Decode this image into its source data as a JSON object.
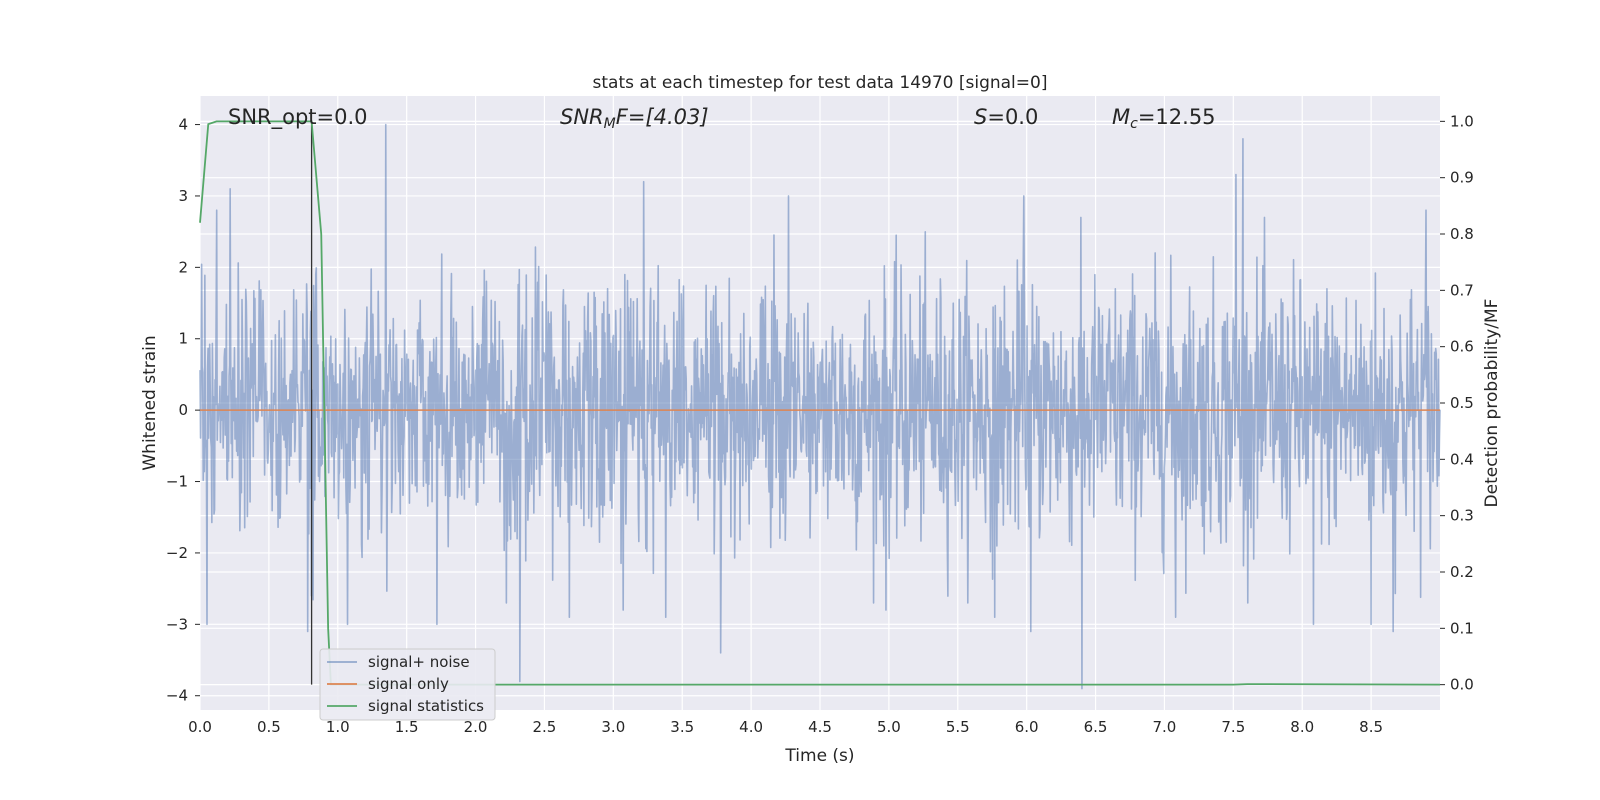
{
  "chart_data": {
    "type": "line",
    "title": "stats at each timestep for test data 14970 [signal=0]",
    "xlabel": "Time (s)",
    "ylabel": "Whitened strain",
    "y2label": "Detection probability/MF",
    "xlim": [
      0.0,
      9.0
    ],
    "ylim": [
      -4.2,
      4.4
    ],
    "y2lim": [
      -0.045,
      1.045
    ],
    "xticks": [
      "0.0",
      "0.5",
      "1.0",
      "1.5",
      "2.0",
      "2.5",
      "3.0",
      "3.5",
      "4.0",
      "4.5",
      "5.0",
      "5.5",
      "6.0",
      "6.5",
      "7.0",
      "7.5",
      "8.0",
      "8.5"
    ],
    "yticks": [
      "4",
      "3",
      "2",
      "1",
      "0",
      "−1",
      "−2",
      "−3",
      "−4"
    ],
    "y2ticks": [
      "1.0",
      "0.9",
      "0.8",
      "0.7",
      "0.6",
      "0.5",
      "0.4",
      "0.3",
      "0.2",
      "0.1",
      "0.0"
    ],
    "grid": true,
    "legend_position": "lower-left",
    "annotations": {
      "snr_opt": "SNR_opt=0.0",
      "snr_mf_base": "SNR",
      "snr_mf_sub": "M",
      "snr_mf_rest": "F=[4.03]",
      "s_italic": "S",
      "s_rest": "=0.0",
      "mc_italic": "M",
      "mc_sub": "c",
      "mc_rest": "=12.55"
    },
    "peak_marker_x": 0.81,
    "series": [
      {
        "name": "signal+ noise",
        "color": "#4c72b0",
        "sample_rate": 256,
        "duration": 9.0,
        "noise_sigma": 0.9,
        "spikes": [
          [
            0.05,
            -3.0
          ],
          [
            0.12,
            2.8
          ],
          [
            0.22,
            3.1
          ],
          [
            0.78,
            -3.1
          ],
          [
            0.81,
            -2.6
          ],
          [
            0.84,
            1.9
          ],
          [
            1.07,
            -3.0
          ],
          [
            1.35,
            4.0
          ],
          [
            1.72,
            -3.0
          ],
          [
            2.32,
            -3.8
          ],
          [
            2.68,
            -2.9
          ],
          [
            3.07,
            -2.8
          ],
          [
            3.22,
            3.2
          ],
          [
            3.38,
            -2.9
          ],
          [
            3.78,
            -3.4
          ],
          [
            4.27,
            3.0
          ],
          [
            4.98,
            -2.8
          ],
          [
            5.77,
            -2.9
          ],
          [
            5.98,
            3.0
          ],
          [
            6.03,
            -3.1
          ],
          [
            6.4,
            -3.9
          ],
          [
            7.08,
            -2.9
          ],
          [
            7.52,
            3.3
          ],
          [
            7.57,
            3.8
          ],
          [
            8.08,
            -3.0
          ],
          [
            8.5,
            -3.0
          ],
          [
            8.66,
            -3.1
          ],
          [
            8.9,
            2.8
          ]
        ]
      },
      {
        "name": "signal only",
        "color": "#dd8452",
        "values_constant": 0.0
      },
      {
        "name": "signal statistics",
        "color": "#55a868",
        "axis": "right",
        "x": [
          0.0,
          0.06,
          0.12,
          0.3,
          0.81,
          0.88,
          0.93,
          0.95,
          1.0,
          7.5,
          7.6,
          9.0
        ],
        "y": [
          0.82,
          0.995,
          1.0,
          1.0,
          1.0,
          0.8,
          0.1,
          0.0,
          0.0,
          0.0,
          0.001,
          0.0
        ]
      }
    ]
  }
}
